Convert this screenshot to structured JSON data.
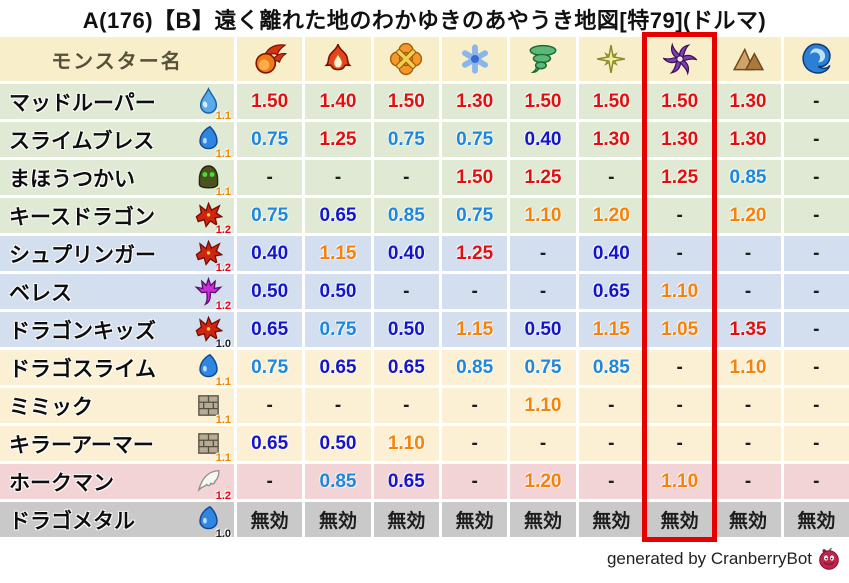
{
  "chart_data": {
    "type": "table",
    "title": "A(176)【B】遠く離れた地のわかゆきのあやうき地図[特79](ドルマ)",
    "name_column_header": "モンスター名",
    "element_columns": [
      {
        "icon": "fireball"
      },
      {
        "icon": "flame"
      },
      {
        "icon": "bang"
      },
      {
        "icon": "snowflake"
      },
      {
        "icon": "tornado"
      },
      {
        "icon": "spark"
      },
      {
        "icon": "dark-pinwheel"
      },
      {
        "icon": "mountain"
      },
      {
        "icon": "wave"
      }
    ],
    "highlight_column_index": 6,
    "rows": [
      {
        "name": "マッドルーパー",
        "family_icon": "water-drop",
        "rate": "1.1",
        "group": "green",
        "values": [
          "1.50",
          "1.40",
          "1.50",
          "1.30",
          "1.50",
          "1.50",
          "1.50",
          "1.30",
          "-"
        ]
      },
      {
        "name": "スライムブレス",
        "family_icon": "slime",
        "rate": "1.1",
        "group": "green",
        "values": [
          "0.75",
          "1.25",
          "0.75",
          "0.75",
          "0.40",
          "1.30",
          "1.30",
          "1.30",
          "-"
        ]
      },
      {
        "name": "まほうつかい",
        "family_icon": "hooded-mage",
        "rate": "1.1",
        "group": "green",
        "values": [
          "-",
          "-",
          "-",
          "1.50",
          "1.25",
          "-",
          "1.25",
          "0.85",
          "-"
        ]
      },
      {
        "name": "キースドラゴン",
        "family_icon": "dragon",
        "rate": "1.2",
        "group": "green",
        "values": [
          "0.75",
          "0.65",
          "0.85",
          "0.75",
          "1.10",
          "1.20",
          "-",
          "1.20",
          "-"
        ]
      },
      {
        "name": "シュプリンガー",
        "family_icon": "dragon",
        "rate": "1.2",
        "group": "blue",
        "values": [
          "0.40",
          "1.15",
          "0.40",
          "1.25",
          "-",
          "0.40",
          "-",
          "-",
          "-"
        ]
      },
      {
        "name": "ベレス",
        "family_icon": "imp",
        "rate": "1.2",
        "group": "blue",
        "values": [
          "0.50",
          "0.50",
          "-",
          "-",
          "-",
          "0.65",
          "1.10",
          "-",
          "-"
        ]
      },
      {
        "name": "ドラゴンキッズ",
        "family_icon": "dragon",
        "rate": "1.0",
        "group": "blue",
        "values": [
          "0.65",
          "0.75",
          "0.50",
          "1.15",
          "0.50",
          "1.15",
          "1.05",
          "1.35",
          "-"
        ]
      },
      {
        "name": "ドラゴスライム",
        "family_icon": "slime",
        "rate": "1.1",
        "group": "cream",
        "values": [
          "0.75",
          "0.65",
          "0.65",
          "0.85",
          "0.75",
          "0.85",
          "-",
          "1.10",
          "-"
        ]
      },
      {
        "name": "ミミック",
        "family_icon": "brick-wall",
        "rate": "1.1",
        "group": "cream",
        "values": [
          "-",
          "-",
          "-",
          "-",
          "1.10",
          "-",
          "-",
          "-",
          "-"
        ]
      },
      {
        "name": "キラーアーマー",
        "family_icon": "brick-wall",
        "rate": "1.1",
        "group": "cream",
        "values": [
          "0.65",
          "0.50",
          "1.10",
          "-",
          "-",
          "-",
          "-",
          "-",
          "-"
        ]
      },
      {
        "name": "ホークマン",
        "family_icon": "wing",
        "rate": "1.2",
        "group": "pink",
        "values": [
          "-",
          "0.85",
          "0.65",
          "-",
          "1.20",
          "-",
          "1.10",
          "-",
          "-"
        ]
      },
      {
        "name": "ドラゴメタル",
        "family_icon": "slime",
        "rate": "1.0",
        "group": "gray",
        "values": [
          "無効",
          "無効",
          "無効",
          "無効",
          "無効",
          "無効",
          "無効",
          "無効",
          "無効"
        ]
      }
    ]
  },
  "footer": {
    "credit": "generated by CranberryBot",
    "icon": "cranberry"
  },
  "colors": {
    "highlight-box": "#e60000",
    "header-bg": "#f8efca",
    "value-red": "#e01010",
    "value-orange": "#f5820a",
    "value-lightblue": "#1e87dc",
    "value-darkblue": "#1515c8",
    "rate-red": "#e60012",
    "rate-orange": "#f08300",
    "row-green": "#dfe9d3",
    "row-blue": "#d3dfee",
    "row-cream": "#fbf0d3",
    "row-pink": "#f2d4d6",
    "row-gray": "#c9c9c9"
  }
}
